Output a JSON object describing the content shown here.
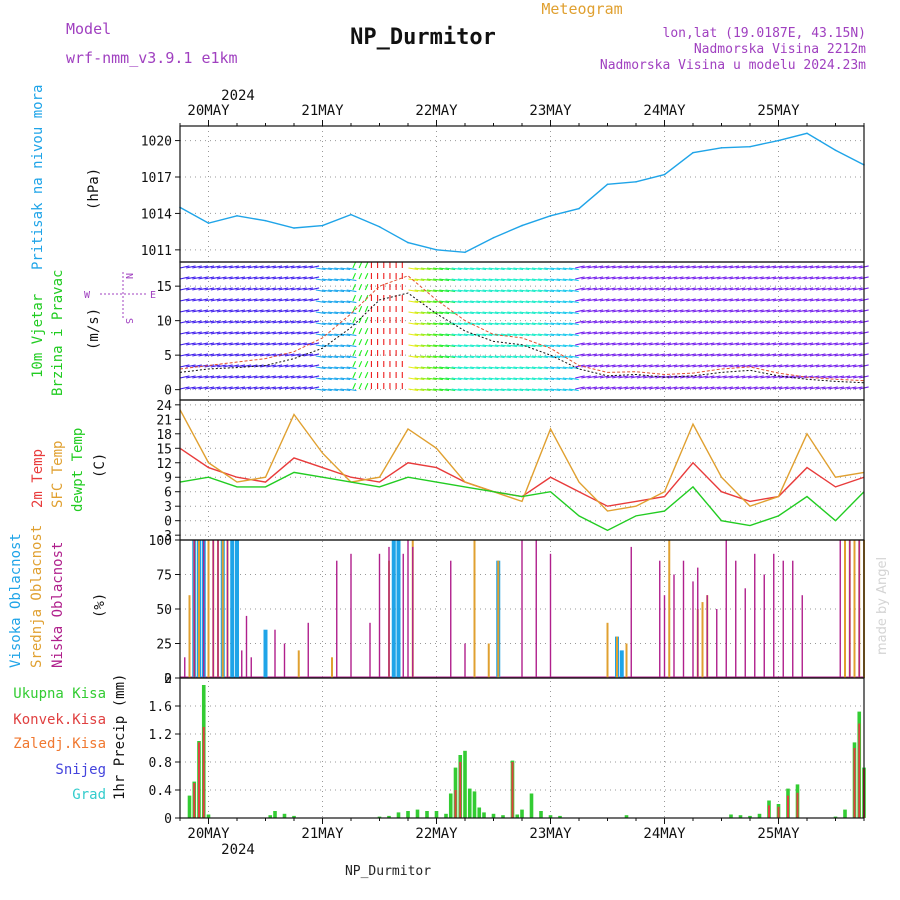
{
  "header": {
    "model_label": "Model",
    "model_name": "wrf-nmm_v3.9.1  e1km",
    "title": "NP_Durmitor",
    "meteogram_label": "Meteogram",
    "location": "lon,lat (19.0187E, 43.15N)",
    "elevation": "Nadmorska Visina 2212m",
    "model_elevation": "Nadmorska Visina u modelu 2024.23m",
    "watermark": "made by Angel",
    "footer_title": "NP_Durmitor"
  },
  "colors": {
    "pressure": "#1fa4e8",
    "temp2m": "#e83b3b",
    "sfc_temp": "#e0a030",
    "dewpt": "#22cc22",
    "high_cloud": "#1fa4e8",
    "mid_cloud": "#e0a030",
    "low_cloud": "#b0208c",
    "total_precip": "#33cc33",
    "conv_precip": "#e04040",
    "frz_precip": "#f07830",
    "snow": "#4444dd",
    "hail": "#33cccc",
    "purple_text": "#a040c0"
  },
  "time_axis": {
    "year": "2024",
    "days": [
      "20MAY",
      "21MAY",
      "22MAY",
      "23MAY",
      "24MAY",
      "25MAY"
    ]
  },
  "chart_data": [
    {
      "type": "line",
      "panel": "pressure",
      "ylabel": "Pritisak na nivou mora",
      "units": "(hPa)",
      "x": [
        0,
        6,
        12,
        18,
        24,
        30,
        36,
        42,
        48,
        54,
        60,
        66,
        72,
        78,
        84,
        90,
        96,
        102,
        108,
        114,
        120,
        126,
        132,
        138,
        144
      ],
      "values": [
        1014.5,
        1013.2,
        1013.8,
        1013.4,
        1012.8,
        1013.0,
        1013.9,
        1012.9,
        1011.6,
        1011.0,
        1010.8,
        1012.0,
        1013.0,
        1013.8,
        1014.4,
        1016.4,
        1016.6,
        1017.2,
        1019.0,
        1019.4,
        1019.5,
        1020.0,
        1020.6,
        1019.2,
        1018.0
      ],
      "yticks": [
        1011,
        1014,
        1017,
        1020
      ],
      "ylim": [
        1010,
        1021.2
      ]
    },
    {
      "type": "line",
      "panel": "wind",
      "ylabel": [
        "10m Vjetar",
        "Brzina i Pravac"
      ],
      "units": "(m/s)",
      "compass": {
        "n": "N",
        "w": "W",
        "e": "E",
        "s": "S"
      },
      "x": [
        0,
        6,
        12,
        18,
        24,
        30,
        36,
        42,
        48,
        54,
        60,
        66,
        72,
        78,
        84,
        90,
        96,
        102,
        108,
        114,
        120,
        126,
        132,
        138,
        144
      ],
      "values": [
        2.5,
        3.0,
        3.2,
        3.5,
        4.5,
        6.0,
        9.0,
        13.0,
        14.0,
        11.0,
        8.5,
        7.0,
        6.5,
        5.0,
        3.0,
        2.0,
        2.2,
        1.8,
        2.0,
        2.5,
        2.8,
        2.0,
        1.5,
        1.2,
        1.0
      ],
      "gust": [
        3,
        3.5,
        4,
        4.5,
        5.5,
        7.5,
        11,
        15,
        16.5,
        13,
        10,
        8,
        7.5,
        6,
        3.5,
        2.5,
        2.6,
        2.2,
        2.4,
        3,
        3.3,
        2.4,
        1.8,
        1.5,
        1.3
      ],
      "yticks": [
        0,
        5,
        10,
        15
      ],
      "ylim": [
        -1.5,
        18.5
      ]
    },
    {
      "type": "line",
      "panel": "temperature",
      "ylabel": [
        "2m Temp",
        "SFC Temp",
        "dewpt Temp"
      ],
      "units": "(C)",
      "x": [
        0,
        6,
        12,
        18,
        24,
        30,
        36,
        42,
        48,
        54,
        60,
        66,
        72,
        78,
        84,
        90,
        96,
        102,
        108,
        114,
        120,
        126,
        132,
        138,
        144
      ],
      "series": [
        {
          "name": "2m Temp",
          "values": [
            15,
            11,
            9,
            8,
            13,
            11,
            9,
            8,
            12,
            11,
            8,
            6,
            5,
            9,
            6,
            3,
            4,
            5,
            12,
            6,
            4,
            5,
            11,
            7,
            9
          ]
        },
        {
          "name": "SFC Temp",
          "values": [
            23,
            12,
            8,
            9,
            22,
            14,
            8,
            9,
            19,
            15,
            8,
            6,
            4,
            19,
            8,
            2,
            3,
            6,
            20,
            9,
            3,
            5,
            18,
            9,
            10
          ]
        },
        {
          "name": "dewpt Temp",
          "values": [
            8,
            9,
            7,
            7,
            10,
            9,
            8,
            7,
            9,
            8,
            7,
            6,
            5,
            6,
            1,
            -2,
            1,
            2,
            7,
            0,
            -1,
            1,
            5,
            0,
            6
          ]
        }
      ],
      "yticks": [
        -3,
        0,
        3,
        6,
        9,
        12,
        15,
        18,
        21,
        24
      ],
      "ylim": [
        -4,
        25
      ]
    },
    {
      "type": "bar",
      "panel": "clouds",
      "ylabel": [
        "Visoka Oblacnost",
        "Srednja Oblacnost",
        "Niska Oblacnost"
      ],
      "units": "(%)",
      "series": [
        {
          "name": "Visoka Oblacnost",
          "x": [
            3,
            4,
            5,
            9,
            11,
            12,
            18,
            45,
            46,
            67,
            92,
            93
          ],
          "values": [
            100,
            100,
            100,
            100,
            100,
            100,
            35,
            100,
            100,
            85,
            30,
            20
          ]
        },
        {
          "name": "Srednja Oblacnost",
          "x": [
            2,
            3,
            4,
            6,
            7,
            8,
            9,
            10,
            25,
            32,
            44,
            49,
            62,
            65,
            67,
            90,
            92,
            94,
            103,
            109,
            110,
            111,
            140,
            141,
            142,
            143,
            144
          ],
          "values": [
            60,
            100,
            100,
            100,
            100,
            100,
            100,
            100,
            20,
            15,
            85,
            100,
            100,
            25,
            85,
            40,
            30,
            25,
            100,
            50,
            55,
            60,
            100,
            100,
            100,
            100,
            100
          ]
        },
        {
          "name": "Niska Oblacnost",
          "x": [
            1,
            3,
            5,
            7,
            8,
            10,
            13,
            14,
            15,
            20,
            22,
            27,
            33,
            36,
            40,
            42,
            44,
            47,
            48,
            49,
            57,
            60,
            72,
            75,
            78,
            95,
            101,
            102,
            104,
            106,
            108,
            109,
            111,
            113,
            115,
            117,
            119,
            121,
            123,
            125,
            127,
            129,
            131,
            139,
            141,
            143
          ],
          "values": [
            15,
            100,
            100,
            100,
            100,
            100,
            20,
            45,
            15,
            35,
            25,
            40,
            85,
            90,
            40,
            90,
            95,
            90,
            100,
            95,
            85,
            25,
            100,
            100,
            90,
            95,
            85,
            60,
            75,
            85,
            70,
            80,
            60,
            50,
            100,
            85,
            65,
            90,
            75,
            90,
            85,
            85,
            60,
            100,
            100,
            100
          ]
        }
      ],
      "yticks": [
        0,
        25,
        50,
        75,
        100
      ],
      "ylim": [
        0,
        100
      ]
    },
    {
      "type": "bar",
      "panel": "precipitation",
      "ylabel": "1hr Precip (mm)",
      "legend": [
        "Ukupna Kisa",
        "Konvek.Kisa",
        "Zaledj.Kisa",
        "Snijeg",
        "Grad"
      ],
      "series": [
        {
          "name": "Ukupna Kisa",
          "x": [
            2,
            3,
            4,
            5,
            6,
            19,
            20,
            22,
            24,
            42,
            44,
            46,
            48,
            50,
            52,
            54,
            56,
            57,
            58,
            59,
            60,
            61,
            62,
            63,
            64,
            66,
            68,
            70,
            71,
            72,
            74,
            76,
            78,
            80,
            94,
            116,
            118,
            120,
            122,
            124,
            126,
            128,
            130,
            138,
            140,
            142,
            143,
            144
          ],
          "values": [
            0.32,
            0.52,
            1.1,
            1.9,
            0.05,
            0.04,
            0.1,
            0.06,
            0.03,
            0.02,
            0.03,
            0.08,
            0.1,
            0.12,
            0.1,
            0.1,
            0.06,
            0.35,
            0.72,
            0.9,
            0.96,
            0.42,
            0.38,
            0.15,
            0.08,
            0.06,
            0.04,
            0.82,
            0.05,
            0.12,
            0.35,
            0.1,
            0.04,
            0.03,
            0.04,
            0.05,
            0.04,
            0.03,
            0.06,
            0.25,
            0.2,
            0.42,
            0.48,
            0.02,
            0.12,
            1.08,
            1.52,
            0.72
          ]
        },
        {
          "name": "Konvek.Kisa",
          "x": [
            3,
            4,
            5,
            58,
            59,
            70,
            124,
            126,
            128,
            130,
            142,
            143,
            144
          ],
          "values": [
            0.5,
            1.08,
            1.3,
            0.4,
            0.8,
            0.8,
            0.18,
            0.16,
            0.32,
            0.36,
            1.0,
            1.35,
            0.7
          ]
        }
      ],
      "yticks": [
        0,
        0.4,
        0.8,
        1.2,
        1.6,
        2
      ],
      "ylim": [
        0,
        2
      ]
    }
  ]
}
